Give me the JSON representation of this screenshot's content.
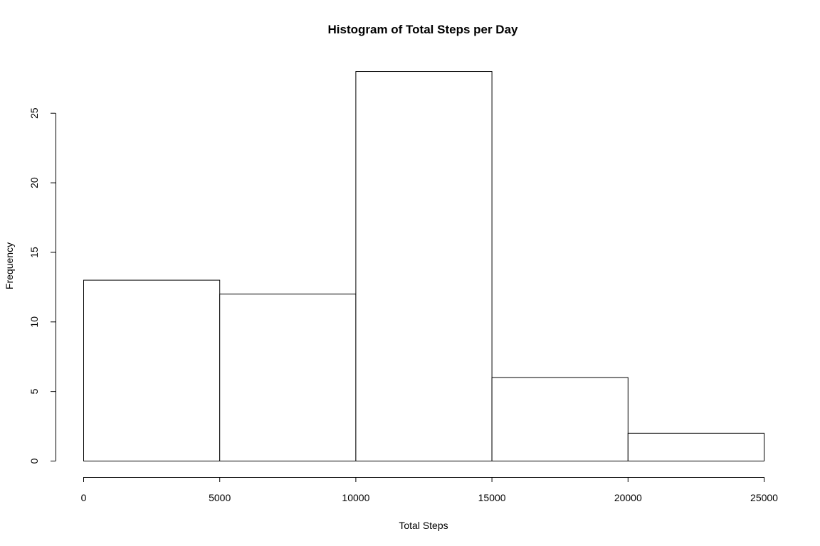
{
  "chart_data": {
    "type": "bar",
    "title": "Histogram of Total Steps per Day",
    "xlabel": "Total Steps",
    "ylabel": "Frequency",
    "bins": [
      {
        "from": 0,
        "to": 5000,
        "count": 13
      },
      {
        "from": 5000,
        "to": 10000,
        "count": 12
      },
      {
        "from": 10000,
        "to": 15000,
        "count": 28
      },
      {
        "from": 15000,
        "to": 20000,
        "count": 6
      },
      {
        "from": 20000,
        "to": 25000,
        "count": 2
      }
    ],
    "xlim": [
      0,
      25000
    ],
    "ylim": [
      0,
      28
    ],
    "x_ticks": [
      0,
      5000,
      10000,
      15000,
      20000,
      25000
    ],
    "y_ticks": [
      0,
      5,
      10,
      15,
      20,
      25
    ],
    "grid": false,
    "legend": "none"
  }
}
